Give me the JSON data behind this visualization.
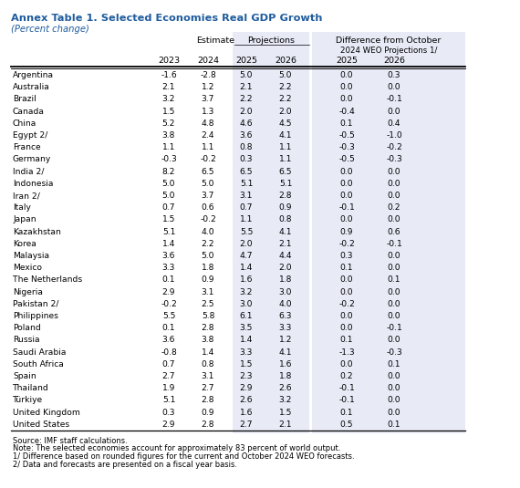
{
  "title": "Annex Table 1. Selected Economies Real GDP Growth",
  "subtitle": "(Percent change)",
  "countries": [
    "Argentina",
    "Australia",
    "Brazil",
    "Canada",
    "China",
    "Egypt 2/",
    "France",
    "Germany",
    "India 2/",
    "Indonesia",
    "Iran 2/",
    "Italy",
    "Japan",
    "Kazakhstan",
    "Korea",
    "Malaysia",
    "Mexico",
    "The Netherlands",
    "Nigeria",
    "Pakistan 2/",
    "Philippines",
    "Poland",
    "Russia",
    "Saudi Arabia",
    "South Africa",
    "Spain",
    "Thailand",
    "Türkiye",
    "United Kingdom",
    "United States"
  ],
  "data": [
    [
      -1.6,
      -2.8,
      5.0,
      5.0,
      0.0,
      0.3
    ],
    [
      2.1,
      1.2,
      2.1,
      2.2,
      0.0,
      0.0
    ],
    [
      3.2,
      3.7,
      2.2,
      2.2,
      0.0,
      -0.1
    ],
    [
      1.5,
      1.3,
      2.0,
      2.0,
      -0.4,
      0.0
    ],
    [
      5.2,
      4.8,
      4.6,
      4.5,
      0.1,
      0.4
    ],
    [
      3.8,
      2.4,
      3.6,
      4.1,
      -0.5,
      -1.0
    ],
    [
      1.1,
      1.1,
      0.8,
      1.1,
      -0.3,
      -0.2
    ],
    [
      -0.3,
      -0.2,
      0.3,
      1.1,
      -0.5,
      -0.3
    ],
    [
      8.2,
      6.5,
      6.5,
      6.5,
      0.0,
      0.0
    ],
    [
      5.0,
      5.0,
      5.1,
      5.1,
      0.0,
      0.0
    ],
    [
      5.0,
      3.7,
      3.1,
      2.8,
      0.0,
      0.0
    ],
    [
      0.7,
      0.6,
      0.7,
      0.9,
      -0.1,
      0.2
    ],
    [
      1.5,
      -0.2,
      1.1,
      0.8,
      0.0,
      0.0
    ],
    [
      5.1,
      4.0,
      5.5,
      4.1,
      0.9,
      0.6
    ],
    [
      1.4,
      2.2,
      2.0,
      2.1,
      -0.2,
      -0.1
    ],
    [
      3.6,
      5.0,
      4.7,
      4.4,
      0.3,
      0.0
    ],
    [
      3.3,
      1.8,
      1.4,
      2.0,
      0.1,
      0.0
    ],
    [
      0.1,
      0.9,
      1.6,
      1.8,
      0.0,
      0.1
    ],
    [
      2.9,
      3.1,
      3.2,
      3.0,
      0.0,
      0.0
    ],
    [
      -0.2,
      2.5,
      3.0,
      4.0,
      -0.2,
      0.0
    ],
    [
      5.5,
      5.8,
      6.1,
      6.3,
      0.0,
      0.0
    ],
    [
      0.1,
      2.8,
      3.5,
      3.3,
      0.0,
      -0.1
    ],
    [
      3.6,
      3.8,
      1.4,
      1.2,
      0.1,
      0.0
    ],
    [
      -0.8,
      1.4,
      3.3,
      4.1,
      -1.3,
      -0.3
    ],
    [
      0.7,
      0.8,
      1.5,
      1.6,
      0.0,
      0.1
    ],
    [
      2.7,
      3.1,
      2.3,
      1.8,
      0.2,
      0.0
    ],
    [
      1.9,
      2.7,
      2.9,
      2.6,
      -0.1,
      0.0
    ],
    [
      5.1,
      2.8,
      2.6,
      3.2,
      -0.1,
      0.0
    ],
    [
      0.3,
      0.9,
      1.6,
      1.5,
      0.1,
      0.0
    ],
    [
      2.9,
      2.8,
      2.7,
      2.1,
      0.5,
      0.1
    ]
  ],
  "notes": [
    "Source: IMF staff calculations.",
    "Note: The selected economies account for approximately 83 percent of world output.",
    "1/ Difference based on rounded figures for the current and October 2024 WEO forecasts.",
    "2/ Data and forecasts are presented on a fiscal year basis."
  ],
  "title_color": "#1F5C9E",
  "subtitle_color": "#1F5C9E",
  "shade_color": "#E8EAF6",
  "text_color": "#000000",
  "figsize": [
    5.7,
    5.35
  ],
  "dpi": 100
}
